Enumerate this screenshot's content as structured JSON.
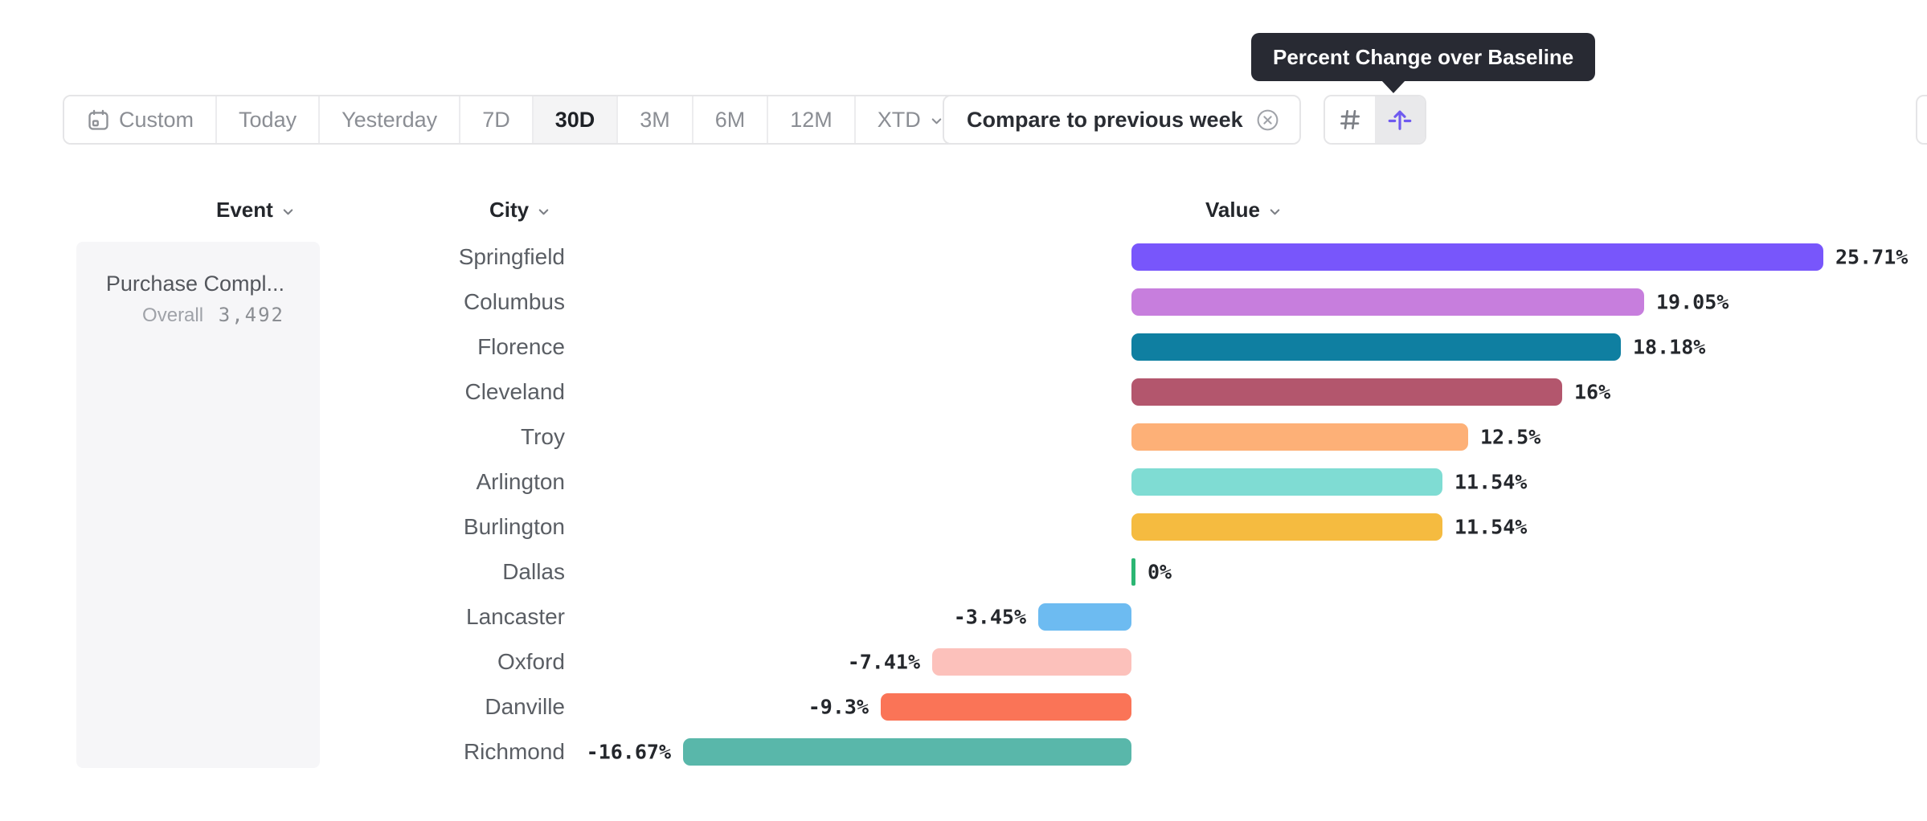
{
  "tooltip": {
    "text": "Percent Change over Baseline"
  },
  "toolbar": {
    "date_ranges": [
      {
        "label": "Custom",
        "icon": "calendar-icon",
        "active": false
      },
      {
        "label": "Today",
        "active": false
      },
      {
        "label": "Yesterday",
        "active": false
      },
      {
        "label": "7D",
        "active": false
      },
      {
        "label": "30D",
        "active": true
      },
      {
        "label": "3M",
        "active": false
      },
      {
        "label": "6M",
        "active": false
      },
      {
        "label": "12M",
        "active": false
      },
      {
        "label": "XTD",
        "icon_right": "chevron-down-icon",
        "active": false
      }
    ],
    "compare_label": "Compare to previous week",
    "view_toggle": {
      "options": [
        {
          "name": "number-view",
          "icon": "hash-icon",
          "selected": false
        },
        {
          "name": "percent-change-view",
          "icon": "baseline-arrow-icon",
          "selected": true
        }
      ]
    }
  },
  "columns": {
    "event": "Event",
    "city": "City",
    "value": "Value"
  },
  "event_panel": {
    "title": "Purchase Compl...",
    "metric_label": "Overall",
    "metric_value": "3,492"
  },
  "chart_data": {
    "type": "bar",
    "orientation": "horizontal",
    "title": "Percent Change over Baseline",
    "xlabel": "Value",
    "ylabel": "City",
    "xlim": [
      -16.67,
      25.71
    ],
    "categories": [
      "Springfield",
      "Columbus",
      "Florence",
      "Cleveland",
      "Troy",
      "Arlington",
      "Burlington",
      "Dallas",
      "Lancaster",
      "Oxford",
      "Danville",
      "Richmond"
    ],
    "values": [
      25.71,
      19.05,
      18.18,
      16,
      12.5,
      11.54,
      11.54,
      0,
      -3.45,
      -7.41,
      -9.3,
      -16.67
    ],
    "labels": [
      "25.71%",
      "19.05%",
      "18.18%",
      "16%",
      "12.5%",
      "11.54%",
      "11.54%",
      "0%",
      "-3.45%",
      "-7.41%",
      "-9.3%",
      "-16.67%"
    ],
    "colors": [
      "#7856fb",
      "#c77edd",
      "#0f7fa1",
      "#b3566d",
      "#fdb077",
      "#7fdcd3",
      "#f5bb40",
      "#2bb673",
      "#6dbbf1",
      "#fcc1bb",
      "#fa7457",
      "#59b7aa"
    ],
    "accent_color": "#6f5af0",
    "grid": false,
    "legend": false
  }
}
